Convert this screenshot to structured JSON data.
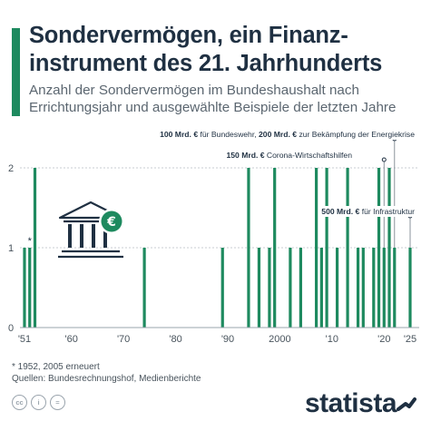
{
  "header": {
    "title": "Sondervermögen, ein Finanz-instrument des 21. Jahrhunderts",
    "subtitle": "Anzahl der Sondervermögen im Bundeshaushalt nach Errichtungsjahr und ausgewählte Beispiele der letzten Jahre"
  },
  "chart_data": {
    "type": "bar",
    "categories": [
      "1951",
      "1952",
      "1953",
      "1974",
      "1989",
      "1994",
      "1996",
      "1998",
      "1999",
      "2002",
      "2004",
      "2007",
      "2008",
      "2009",
      "2011",
      "2013",
      "2015",
      "2016",
      "2018",
      "2019",
      "2020",
      "2021",
      "2022",
      "2025"
    ],
    "values": [
      1,
      1,
      2,
      1,
      1,
      2,
      1,
      1,
      2,
      1,
      1,
      2,
      1,
      2,
      1,
      2,
      1,
      1,
      1,
      2,
      1,
      2,
      1,
      1
    ],
    "xlim": [
      1951,
      2025
    ],
    "ylim": [
      0,
      2
    ],
    "yticks": [
      "0",
      "1",
      "2"
    ],
    "xticks": [
      {
        "value": 1951,
        "label": "'51"
      },
      {
        "value": 1960,
        "label": "'60"
      },
      {
        "value": 1970,
        "label": "'70"
      },
      {
        "value": 1980,
        "label": "'80"
      },
      {
        "value": 1990,
        "label": "'90"
      },
      {
        "value": 2000,
        "label": "2000"
      },
      {
        "value": 2010,
        "label": "'10"
      },
      {
        "value": 2020,
        "label": "'20"
      },
      {
        "value": 2025,
        "label": "'25"
      }
    ],
    "bar_color": "#1e8a5f",
    "asterisk": {
      "year": 1952,
      "text": "*"
    },
    "annotations": [
      {
        "year": 2022,
        "bold": "100 Mrd. €",
        "text": " für Bundeswehr, ",
        "bold2": "200 Mrd. €",
        "text2": " zur Bekämpfung der Energiekrise"
      },
      {
        "year": 2020,
        "bold": "150 Mrd. €",
        "text": " Corona-Wirtschaftshilfen",
        "bold2": "",
        "text2": ""
      },
      {
        "year": 2025,
        "bold": "500 Mrd. €",
        "text": " für Infrastruktur",
        "bold2": "",
        "text2": ""
      }
    ]
  },
  "icon": {
    "name": "bank-euro-icon",
    "symbol": "€",
    "color": "#1e8a5f"
  },
  "footer": {
    "footnote": "* 1952, 2005 erneuert",
    "sources": "Quellen: Bundesrechnungshof, Medienberichte",
    "license_icons": [
      "cc",
      "i",
      "="
    ],
    "brand": "statista"
  }
}
